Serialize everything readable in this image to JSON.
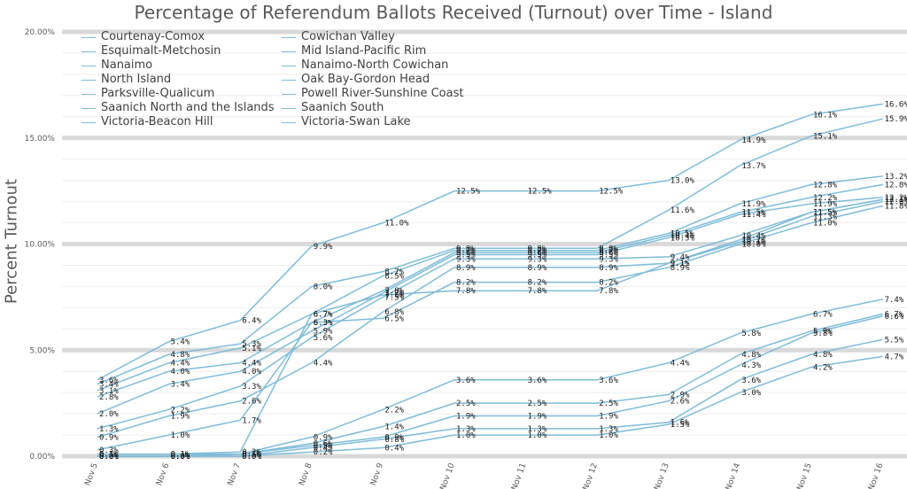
{
  "chart_data": {
    "type": "line",
    "title": "Percentage of Referendum Ballots Received (Turnout) over Time - Island",
    "ylabel": "Percent Turnout",
    "xlabel": "",
    "ylim": [
      0,
      20
    ],
    "y_ticks": [
      "0.00%",
      "5.00%",
      "10.00%",
      "15.00%",
      "20.00%"
    ],
    "categories": [
      "Nov 5",
      "Nov 6",
      "Nov 7",
      "Nov 8",
      "Nov 9",
      "Nov 10",
      "Nov 11",
      "Nov 12",
      "Nov 13",
      "Nov 14",
      "Nov 15",
      "Nov 16"
    ],
    "legend_position": "top-left",
    "line_color": "#7fbcd8",
    "series": [
      {
        "name": "Courtenay-Comox",
        "values": [
          3.6,
          5.4,
          6.4,
          9.9,
          11.0,
          12.5,
          12.5,
          12.5,
          13.0,
          14.9,
          16.1,
          16.6
        ]
      },
      {
        "name": "Cowichan Valley",
        "values": [
          3.4,
          4.8,
          5.3,
          8.0,
          8.7,
          9.8,
          9.8,
          9.8,
          11.6,
          13.7,
          15.1,
          15.9
        ]
      },
      {
        "name": "Esquimalt-Metchosin",
        "values": [
          3.1,
          4.4,
          5.1,
          6.7,
          8.5,
          9.7,
          9.7,
          9.7,
          10.5,
          11.9,
          12.8,
          13.2
        ]
      },
      {
        "name": "Mid Island-Pacific Rim",
        "values": [
          2.8,
          4.0,
          4.4,
          6.3,
          7.8,
          9.6,
          9.6,
          9.6,
          10.4,
          11.5,
          12.2,
          12.8
        ]
      },
      {
        "name": "Nanaimo",
        "values": [
          2.0,
          3.4,
          4.0,
          5.9,
          7.7,
          9.5,
          9.5,
          9.5,
          10.3,
          11.4,
          11.9,
          12.2
        ]
      },
      {
        "name": "Nanaimo-North Cowichan",
        "values": [
          1.3,
          2.2,
          3.3,
          5.6,
          7.5,
          9.3,
          9.3,
          9.3,
          9.4,
          10.4,
          11.5,
          12.1
        ]
      },
      {
        "name": "North Island",
        "values": [
          0.9,
          1.9,
          2.6,
          4.4,
          6.8,
          8.9,
          8.9,
          8.9,
          9.1,
          10.1,
          11.3,
          12.0
        ]
      },
      {
        "name": "Oak Bay-Gordon Head",
        "values": [
          0.3,
          1.0,
          1.7,
          6.3,
          6.5,
          8.2,
          8.2,
          8.2,
          8.9,
          10.0,
          11.0,
          11.8
        ]
      },
      {
        "name": "Parksville-Qualicum",
        "values": [
          0.1,
          0.1,
          0.2,
          6.7,
          7.6,
          7.8,
          7.8,
          7.8,
          9.1,
          10.2,
          11.5,
          12.1
        ]
      },
      {
        "name": "Powell River-Sunshine Coast",
        "values": [
          0.1,
          0.1,
          0.1,
          0.9,
          2.2,
          3.6,
          3.6,
          3.6,
          4.4,
          5.8,
          6.7,
          7.4
        ]
      },
      {
        "name": "Saanich North and the Islands",
        "values": [
          0.0,
          0.0,
          0.1,
          0.6,
          1.4,
          2.5,
          2.5,
          2.5,
          2.9,
          4.8,
          5.9,
          6.7
        ]
      },
      {
        "name": "Saanich South",
        "values": [
          0.0,
          0.0,
          0.1,
          0.5,
          0.9,
          1.9,
          1.9,
          1.9,
          2.6,
          4.3,
          5.8,
          6.6
        ]
      },
      {
        "name": "Victoria-Beacon Hill",
        "values": [
          0.0,
          0.0,
          0.0,
          0.4,
          0.8,
          1.3,
          1.3,
          1.3,
          1.6,
          3.6,
          4.8,
          5.5
        ]
      },
      {
        "name": "Victoria-Swan Lake",
        "values": [
          0.0,
          0.0,
          0.0,
          0.2,
          0.4,
          1.0,
          1.0,
          1.0,
          1.5,
          3.0,
          4.2,
          4.7
        ]
      }
    ]
  }
}
